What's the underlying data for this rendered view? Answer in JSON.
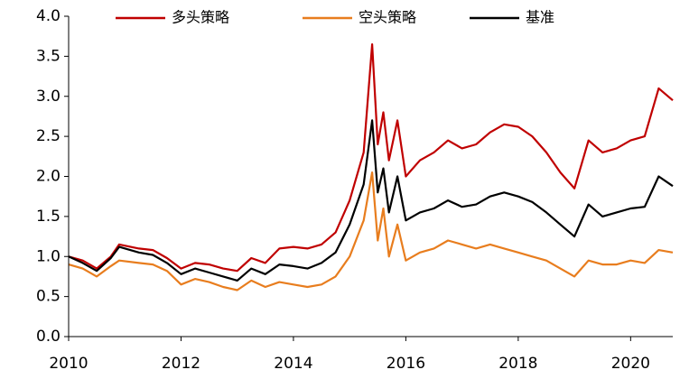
{
  "chart_data": {
    "type": "line",
    "x": [
      2010.0,
      2010.25,
      2010.5,
      2010.75,
      2010.9,
      2011.25,
      2011.5,
      2011.75,
      2012.0,
      2012.25,
      2012.5,
      2012.75,
      2013.0,
      2013.25,
      2013.5,
      2013.75,
      2014.0,
      2014.25,
      2014.5,
      2014.75,
      2015.0,
      2015.25,
      2015.4,
      2015.5,
      2015.6,
      2015.7,
      2015.85,
      2016.0,
      2016.25,
      2016.5,
      2016.75,
      2017.0,
      2017.25,
      2017.5,
      2017.75,
      2018.0,
      2018.25,
      2018.5,
      2018.75,
      2019.0,
      2019.25,
      2019.5,
      2019.75,
      2020.0,
      2020.25,
      2020.5,
      2020.75
    ],
    "series": [
      {
        "name": "多头策略",
        "color": "#c00000",
        "values": [
          1.0,
          0.95,
          0.85,
          1.0,
          1.15,
          1.1,
          1.08,
          0.98,
          0.85,
          0.92,
          0.9,
          0.85,
          0.82,
          0.98,
          0.92,
          1.1,
          1.12,
          1.1,
          1.15,
          1.3,
          1.7,
          2.3,
          3.65,
          2.4,
          2.8,
          2.2,
          2.7,
          2.0,
          2.2,
          2.3,
          2.45,
          2.35,
          2.4,
          2.55,
          2.65,
          2.62,
          2.5,
          2.3,
          2.05,
          1.85,
          2.45,
          2.3,
          2.35,
          2.45,
          2.5,
          3.1,
          2.95
        ]
      },
      {
        "name": "空头策略",
        "color": "#e87d1e",
        "values": [
          0.9,
          0.85,
          0.75,
          0.88,
          0.95,
          0.92,
          0.9,
          0.82,
          0.65,
          0.72,
          0.68,
          0.62,
          0.58,
          0.7,
          0.62,
          0.68,
          0.65,
          0.62,
          0.65,
          0.75,
          1.0,
          1.45,
          2.05,
          1.2,
          1.6,
          1.0,
          1.4,
          0.95,
          1.05,
          1.1,
          1.2,
          1.15,
          1.1,
          1.15,
          1.1,
          1.05,
          1.0,
          0.95,
          0.85,
          0.75,
          0.95,
          0.9,
          0.9,
          0.95,
          0.92,
          1.08,
          1.05
        ]
      },
      {
        "name": "基准",
        "color": "#000000",
        "values": [
          1.0,
          0.92,
          0.82,
          0.98,
          1.12,
          1.05,
          1.02,
          0.92,
          0.78,
          0.85,
          0.8,
          0.75,
          0.7,
          0.85,
          0.78,
          0.9,
          0.88,
          0.85,
          0.92,
          1.05,
          1.4,
          1.9,
          2.7,
          1.8,
          2.1,
          1.55,
          2.0,
          1.45,
          1.55,
          1.6,
          1.7,
          1.62,
          1.65,
          1.75,
          1.8,
          1.75,
          1.68,
          1.55,
          1.4,
          1.25,
          1.65,
          1.5,
          1.55,
          1.6,
          1.62,
          2.0,
          1.88
        ]
      }
    ],
    "xlim": [
      2010,
      2020.75
    ],
    "xticks": [
      2010,
      2012,
      2014,
      2016,
      2018,
      2020
    ],
    "ylim": [
      0,
      4
    ],
    "yticks": [
      {
        "value": 0,
        "label": "0.0"
      },
      {
        "value": 0.5,
        "label": "0.5"
      },
      {
        "value": 1,
        "label": "1.0"
      },
      {
        "value": 1.5,
        "label": "1.5"
      },
      {
        "value": 2,
        "label": "2.0"
      },
      {
        "value": 2.5,
        "label": "2.5"
      },
      {
        "value": 3,
        "label": "3.0"
      },
      {
        "value": 3.5,
        "label": "3.5"
      },
      {
        "value": 4,
        "label": "4.0"
      }
    ],
    "legend": "top"
  }
}
